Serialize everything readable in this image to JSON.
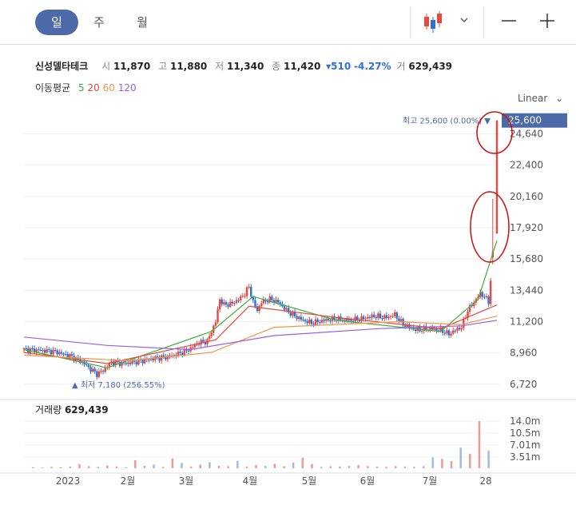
{
  "tabs": [
    "일",
    "주",
    "월"
  ],
  "header": {
    "name": "신성델타테크",
    "open_label": "시",
    "open": "11,870",
    "high_label": "고",
    "high": "11,880",
    "low_label": "저",
    "low": "11,340",
    "close_label": "종",
    "close": "11,420",
    "change": "▾510",
    "change_pct": "-4.27%",
    "vol_label": "거",
    "volume": "629,439"
  },
  "ma": {
    "label": "이동평균",
    "periods": [
      "5",
      "20",
      "60",
      "120"
    ],
    "colors": [
      "#3cb043",
      "#e8483d",
      "#f0964a",
      "#9a5fe0"
    ]
  },
  "scale_label": "Linear",
  "volume_panel": {
    "label": "거래량",
    "value": "629,439"
  },
  "colors": {
    "up": "#e8483d",
    "down": "#2f6fd6",
    "accent": "#4d6aa8"
  },
  "chart_data": {
    "type": "candlestick",
    "x_ticks": [
      "2023",
      "2월",
      "3월",
      "4월",
      "5월",
      "6월",
      "7월",
      "28"
    ],
    "y_ticks": [
      6720,
      8960,
      11200,
      13440,
      15680,
      17920,
      20160,
      22400,
      24640,
      25600
    ],
    "y_tick_labels": [
      "6,720",
      "8,960",
      "11,200",
      "13,440",
      "15,680",
      "17,920",
      "20,160",
      "22,400",
      "24,640",
      "25,600"
    ],
    "current_price_label": "25,600",
    "ylim": [
      6200,
      26500
    ],
    "high_annotation": "최고 25,600 (0.00%)",
    "low_annotation": "최저 7,180 (256.55%)",
    "volume_ticks": [
      "14.0m",
      "10.5m",
      "7.01m",
      "3.51m"
    ],
    "close_path": [
      [
        0,
        9200
      ],
      [
        8,
        9150
      ],
      [
        15,
        9050
      ],
      [
        22,
        8750
      ],
      [
        28,
        8300
      ],
      [
        32,
        7800
      ],
      [
        35,
        7450
      ],
      [
        38,
        7700
      ],
      [
        42,
        8300
      ],
      [
        48,
        8200
      ],
      [
        55,
        8350
      ],
      [
        62,
        8550
      ],
      [
        70,
        8700
      ],
      [
        78,
        9100
      ],
      [
        84,
        9700
      ],
      [
        88,
        9800
      ],
      [
        92,
        11200
      ],
      [
        94,
        12800
      ],
      [
        96,
        12400
      ],
      [
        100,
        12500
      ],
      [
        104,
        12900
      ],
      [
        106,
        13200
      ],
      [
        108,
        13700
      ],
      [
        110,
        12600
      ],
      [
        112,
        12000
      ],
      [
        114,
        12600
      ],
      [
        118,
        12800
      ],
      [
        122,
        12600
      ],
      [
        126,
        12000
      ],
      [
        130,
        11600
      ],
      [
        134,
        11300
      ],
      [
        138,
        11100
      ],
      [
        144,
        11300
      ],
      [
        150,
        11400
      ],
      [
        156,
        11300
      ],
      [
        162,
        11400
      ],
      [
        168,
        11600
      ],
      [
        174,
        11500
      ],
      [
        178,
        11700
      ],
      [
        182,
        11000
      ],
      [
        188,
        10600
      ],
      [
        194,
        10700
      ],
      [
        200,
        10600
      ],
      [
        204,
        10300
      ],
      [
        207,
        10600
      ],
      [
        210,
        10800
      ],
      [
        213,
        12000
      ],
      [
        216,
        12600
      ],
      [
        219,
        13200
      ],
      [
        221,
        13000
      ],
      [
        223,
        12600
      ],
      [
        225,
        15800
      ],
      [
        227,
        17500
      ]
    ],
    "spikes": [
      [
        225,
        16200,
        20000,
        15300,
        15800
      ],
      [
        227,
        17500,
        25600,
        17500,
        25600
      ]
    ],
    "ma5_path": [
      [
        0,
        9200
      ],
      [
        40,
        7900
      ],
      [
        90,
        10500
      ],
      [
        110,
        13000
      ],
      [
        150,
        11300
      ],
      [
        200,
        10500
      ],
      [
        218,
        12800
      ],
      [
        227,
        17000
      ]
    ],
    "ma20_path": [
      [
        0,
        9000
      ],
      [
        40,
        8200
      ],
      [
        92,
        9900
      ],
      [
        108,
        12300
      ],
      [
        150,
        11500
      ],
      [
        200,
        10700
      ],
      [
        227,
        12400
      ]
    ],
    "ma60_path": [
      [
        0,
        8800
      ],
      [
        50,
        8400
      ],
      [
        90,
        9000
      ],
      [
        120,
        10800
      ],
      [
        180,
        11200
      ],
      [
        210,
        11000
      ],
      [
        227,
        11600
      ]
    ],
    "ma120_path": [
      [
        0,
        10100
      ],
      [
        40,
        9500
      ],
      [
        80,
        9200
      ],
      [
        120,
        10200
      ],
      [
        170,
        10700
      ],
      [
        210,
        10900
      ],
      [
        227,
        11300
      ]
    ],
    "volumes_m": [
      0.3,
      0.2,
      0.4,
      0.3,
      0.5,
      1.2,
      0.6,
      0.4,
      0.8,
      0.5,
      0.3,
      2.4,
      0.7,
      1.1,
      0.4,
      2.9,
      1.6,
      0.5,
      1.1,
      1.8,
      0.7,
      0.6,
      2.2,
      0.5,
      0.9,
      0.7,
      1.3,
      0.6,
      1.7,
      3.1,
      1.2,
      0.4,
      0.6,
      0.5,
      0.7,
      0.9,
      0.6,
      0.5,
      0.4,
      0.6,
      0.5,
      0.4,
      0.6,
      3.2,
      2.8,
      2.1,
      6.1,
      4.3,
      14.0,
      5.2
    ]
  }
}
